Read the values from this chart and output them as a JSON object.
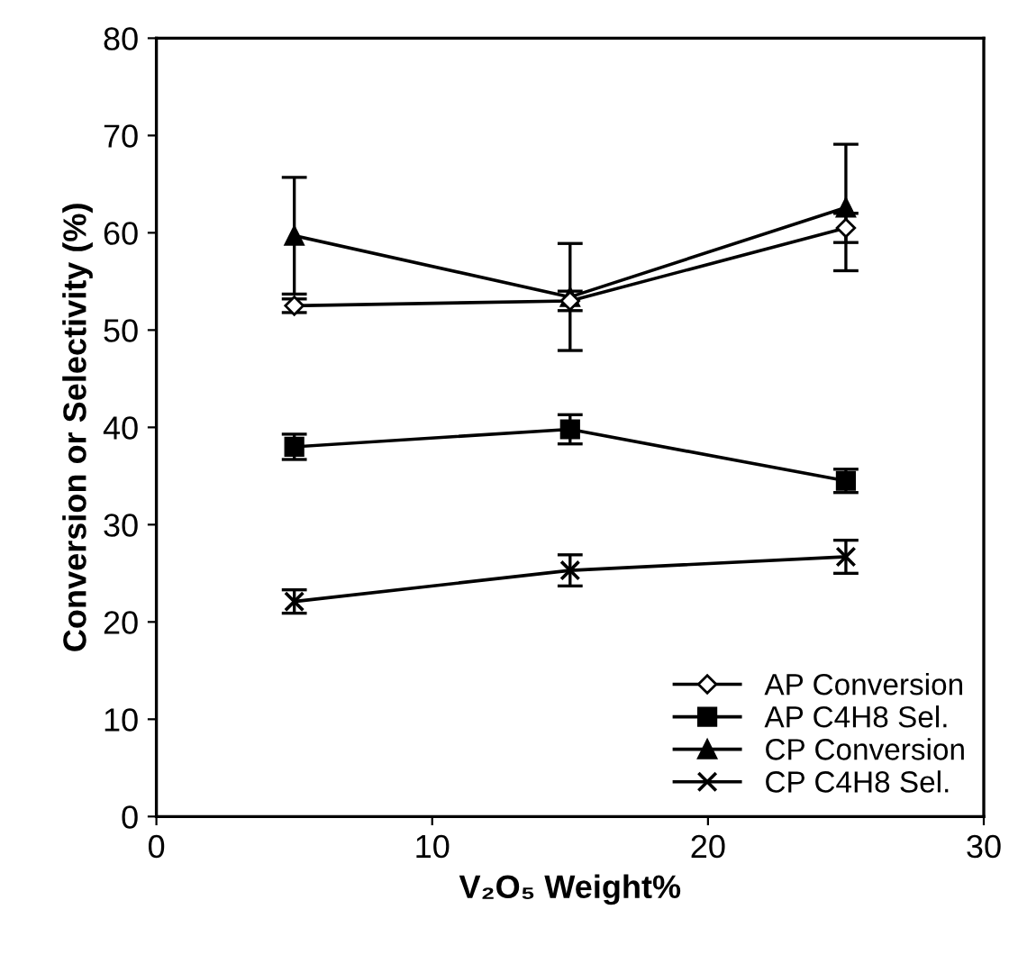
{
  "chart_data": {
    "type": "line",
    "xlabel": "V₂O₅ Weight%",
    "ylabel": "Conversion or Selectivity (%)",
    "x": [
      5,
      15,
      25
    ],
    "xlim": [
      0,
      30
    ],
    "xticks": [
      0,
      10,
      20,
      30
    ],
    "ylim": [
      0,
      80
    ],
    "yticks": [
      0,
      10,
      20,
      30,
      40,
      50,
      60,
      70,
      80
    ],
    "grid": false,
    "legend": "bottom right",
    "line_style": "solid",
    "series": [
      {
        "name": "AP Conversion",
        "color": "#000000",
        "marker": "diamond",
        "values": [
          52.5,
          53,
          60.5
        ],
        "errors": [
          0.7,
          1,
          1.5
        ]
      },
      {
        "name": "AP C4H8 Sel.",
        "color": "#000000",
        "marker": "square",
        "values": [
          38,
          39.8,
          34.5
        ],
        "errors": [
          1.3,
          1.5,
          1.2
        ]
      },
      {
        "name": "CP Conversion",
        "color": "#000000",
        "marker": "triangle",
        "values": [
          59.7,
          53.4,
          62.6
        ],
        "errors": [
          6,
          5.5,
          6.5
        ]
      },
      {
        "name": "CP C4H8 Sel.",
        "color": "#000000",
        "marker": "cross",
        "values": [
          22.1,
          25.3,
          26.7
        ],
        "errors": [
          1.2,
          1.6,
          1.7
        ]
      }
    ]
  }
}
